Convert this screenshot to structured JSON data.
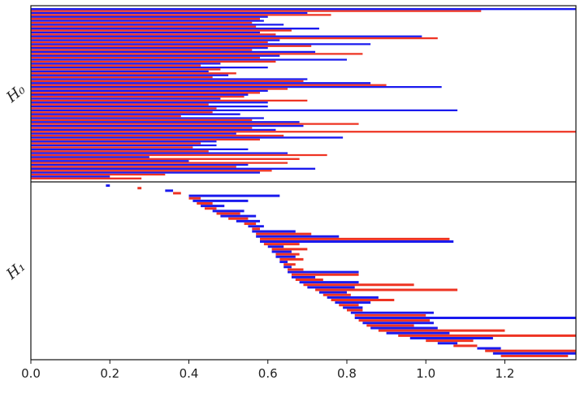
{
  "chart_data": {
    "type": "barcode",
    "xlim": [
      0,
      1.38
    ],
    "x_ticks": [
      0.0,
      0.2,
      0.4,
      0.6,
      0.8,
      1.0,
      1.2
    ],
    "x_tick_labels": [
      "0.0",
      "0.2",
      "0.4",
      "0.6",
      "0.8",
      "1.0",
      "1.2"
    ],
    "colors": {
      "red": "#ee3322",
      "blue": "#1a1aee"
    },
    "panels": [
      {
        "label": "H₀",
        "bars": [
          [
            "blue",
            0.0,
            1.38
          ],
          [
            "red",
            0.0,
            1.14
          ],
          [
            "blue",
            0.0,
            0.7
          ],
          [
            "red",
            0.0,
            0.76
          ],
          [
            "blue",
            0.0,
            0.6
          ],
          [
            "red",
            0.0,
            0.58
          ],
          [
            "blue",
            0.0,
            0.59
          ],
          [
            "red",
            0.0,
            0.56
          ],
          [
            "blue",
            0.0,
            0.64
          ],
          [
            "red",
            0.0,
            0.57
          ],
          [
            "blue",
            0.0,
            0.73
          ],
          [
            "red",
            0.0,
            0.66
          ],
          [
            "blue",
            0.0,
            0.58
          ],
          [
            "red",
            0.0,
            0.62
          ],
          [
            "blue",
            0.0,
            0.99
          ],
          [
            "red",
            0.0,
            1.03
          ],
          [
            "blue",
            0.0,
            0.63
          ],
          [
            "red",
            0.0,
            0.6
          ],
          [
            "blue",
            0.0,
            0.86
          ],
          [
            "red",
            0.0,
            0.71
          ],
          [
            "blue",
            0.0,
            0.6
          ],
          [
            "red",
            0.0,
            0.56
          ],
          [
            "blue",
            0.0,
            0.72
          ],
          [
            "red",
            0.0,
            0.84
          ],
          [
            "blue",
            0.0,
            0.63
          ],
          [
            "red",
            0.0,
            0.58
          ],
          [
            "blue",
            0.0,
            0.8
          ],
          [
            "red",
            0.0,
            0.62
          ],
          [
            "blue",
            0.0,
            0.48
          ],
          [
            "red",
            0.0,
            0.43
          ],
          [
            "blue",
            0.0,
            0.6
          ],
          [
            "red",
            0.0,
            0.48
          ],
          [
            "blue",
            0.0,
            0.45
          ],
          [
            "red",
            0.0,
            0.52
          ],
          [
            "blue",
            0.0,
            0.5
          ],
          [
            "red",
            0.0,
            0.46
          ],
          [
            "blue",
            0.0,
            0.7
          ],
          [
            "red",
            0.0,
            0.69
          ],
          [
            "blue",
            0.0,
            0.86
          ],
          [
            "red",
            0.0,
            0.9
          ],
          [
            "blue",
            0.0,
            1.04
          ],
          [
            "red",
            0.0,
            0.65
          ],
          [
            "blue",
            0.0,
            0.6
          ],
          [
            "red",
            0.0,
            0.58
          ],
          [
            "blue",
            0.0,
            0.55
          ],
          [
            "red",
            0.0,
            0.54
          ],
          [
            "blue",
            0.0,
            0.48
          ],
          [
            "red",
            0.0,
            0.7
          ],
          [
            "blue",
            0.0,
            0.6
          ],
          [
            "red",
            0.0,
            0.45
          ],
          [
            "blue",
            0.0,
            0.6
          ],
          [
            "red",
            0.0,
            0.47
          ],
          [
            "blue",
            0.0,
            1.08
          ],
          [
            "red",
            0.0,
            0.46
          ],
          [
            "blue",
            0.0,
            0.53
          ],
          [
            "red",
            0.0,
            0.38
          ],
          [
            "blue",
            0.0,
            0.59
          ],
          [
            "red",
            0.0,
            0.56
          ],
          [
            "blue",
            0.0,
            0.68
          ],
          [
            "red",
            0.0,
            0.83
          ],
          [
            "blue",
            0.0,
            0.69
          ],
          [
            "red",
            0.0,
            0.56
          ],
          [
            "blue",
            0.0,
            0.62
          ],
          [
            "red",
            0.0,
            1.38
          ],
          [
            "blue",
            0.0,
            0.52
          ],
          [
            "red",
            0.0,
            0.64
          ],
          [
            "blue",
            0.0,
            0.79
          ],
          [
            "red",
            0.0,
            0.58
          ],
          [
            "blue",
            0.0,
            0.47
          ],
          [
            "red",
            0.0,
            0.43
          ],
          [
            "blue",
            0.0,
            0.47
          ],
          [
            "red",
            0.0,
            0.41
          ],
          [
            "blue",
            0.0,
            0.55
          ],
          [
            "red",
            0.0,
            0.45
          ],
          [
            "blue",
            0.0,
            0.65
          ],
          [
            "red",
            0.0,
            0.75
          ],
          [
            "blue",
            0.0,
            0.3
          ],
          [
            "red",
            0.0,
            0.68
          ],
          [
            "blue",
            0.0,
            0.4
          ],
          [
            "red",
            0.0,
            0.65
          ],
          [
            "blue",
            0.0,
            0.55
          ],
          [
            "red",
            0.0,
            0.52
          ],
          [
            "blue",
            0.0,
            0.72
          ],
          [
            "red",
            0.0,
            0.61
          ],
          [
            "blue",
            0.0,
            0.58
          ],
          [
            "red",
            0.0,
            0.34
          ],
          [
            "blue",
            0.0,
            0.2
          ],
          [
            "red",
            0.0,
            0.28
          ]
        ]
      },
      {
        "label": "H₁",
        "bars": [
          [
            "blue",
            0.19,
            0.2
          ],
          [
            "red",
            0.27,
            0.28
          ],
          [
            "blue",
            0.34,
            0.36
          ],
          [
            "red",
            0.36,
            0.38
          ],
          [
            "blue",
            0.4,
            0.63
          ],
          [
            "red",
            0.4,
            0.43
          ],
          [
            "blue",
            0.41,
            0.55
          ],
          [
            "red",
            0.42,
            0.46
          ],
          [
            "blue",
            0.43,
            0.49
          ],
          [
            "red",
            0.44,
            0.47
          ],
          [
            "blue",
            0.46,
            0.54
          ],
          [
            "red",
            0.47,
            0.53
          ],
          [
            "blue",
            0.48,
            0.57
          ],
          [
            "red",
            0.5,
            0.55
          ],
          [
            "blue",
            0.52,
            0.58
          ],
          [
            "red",
            0.54,
            0.57
          ],
          [
            "blue",
            0.55,
            0.59
          ],
          [
            "red",
            0.56,
            0.58
          ],
          [
            "blue",
            0.56,
            0.67
          ],
          [
            "red",
            0.57,
            0.71
          ],
          [
            "blue",
            0.57,
            0.78
          ],
          [
            "red",
            0.58,
            1.06
          ],
          [
            "blue",
            0.58,
            1.07
          ],
          [
            "red",
            0.59,
            0.68
          ],
          [
            "blue",
            0.6,
            0.64
          ],
          [
            "red",
            0.61,
            0.7
          ],
          [
            "blue",
            0.61,
            0.66
          ],
          [
            "red",
            0.62,
            0.68
          ],
          [
            "blue",
            0.62,
            0.67
          ],
          [
            "red",
            0.63,
            0.69
          ],
          [
            "blue",
            0.63,
            0.65
          ],
          [
            "red",
            0.64,
            0.67
          ],
          [
            "blue",
            0.64,
            0.66
          ],
          [
            "red",
            0.65,
            0.69
          ],
          [
            "blue",
            0.65,
            0.83
          ],
          [
            "red",
            0.66,
            0.83
          ],
          [
            "blue",
            0.66,
            0.72
          ],
          [
            "red",
            0.67,
            0.74
          ],
          [
            "blue",
            0.68,
            0.83
          ],
          [
            "red",
            0.69,
            0.97
          ],
          [
            "blue",
            0.7,
            0.82
          ],
          [
            "red",
            0.72,
            1.08
          ],
          [
            "blue",
            0.73,
            0.8
          ],
          [
            "red",
            0.74,
            0.81
          ],
          [
            "blue",
            0.75,
            0.88
          ],
          [
            "red",
            0.76,
            0.92
          ],
          [
            "blue",
            0.77,
            0.86
          ],
          [
            "red",
            0.78,
            0.83
          ],
          [
            "blue",
            0.79,
            0.84
          ],
          [
            "red",
            0.8,
            0.84
          ],
          [
            "blue",
            0.81,
            1.02
          ],
          [
            "red",
            0.82,
            1.0
          ],
          [
            "blue",
            0.82,
            1.38
          ],
          [
            "red",
            0.83,
            1.01
          ],
          [
            "blue",
            0.84,
            1.02
          ],
          [
            "red",
            0.85,
            0.97
          ],
          [
            "blue",
            0.86,
            1.03
          ],
          [
            "red",
            0.88,
            1.2
          ],
          [
            "blue",
            0.9,
            1.06
          ],
          [
            "red",
            0.93,
            1.38
          ],
          [
            "blue",
            0.96,
            1.17
          ],
          [
            "red",
            1.0,
            1.12
          ],
          [
            "blue",
            1.03,
            1.08
          ],
          [
            "red",
            1.07,
            1.13
          ],
          [
            "blue",
            1.13,
            1.19
          ],
          [
            "red",
            1.15,
            1.38
          ],
          [
            "blue",
            1.17,
            1.38
          ],
          [
            "red",
            1.19,
            1.36
          ]
        ]
      }
    ]
  }
}
